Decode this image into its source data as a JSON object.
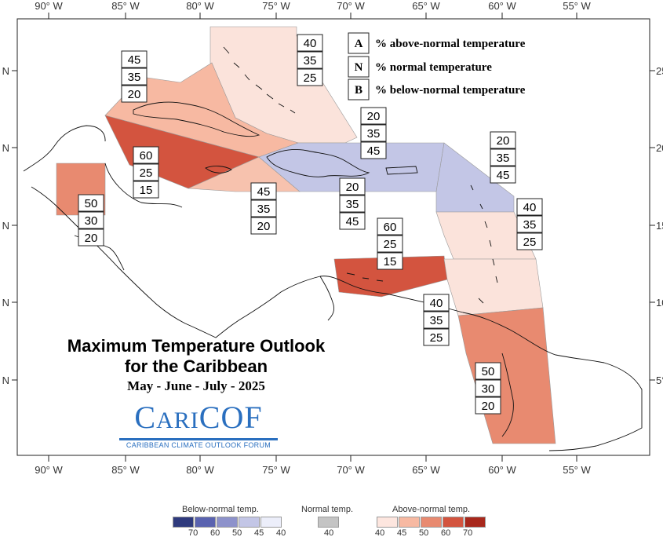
{
  "axes": {
    "x_labels": [
      "90° W",
      "85° W",
      "80° W",
      "75° W",
      "70° W",
      "65° W",
      "60° W",
      "55° W"
    ],
    "y_left_labels": [
      "N",
      "N",
      "N",
      "N",
      "N"
    ],
    "y_right_labels": [
      "25",
      "20",
      "15",
      "10",
      "5°"
    ]
  },
  "key": {
    "above": {
      "letter": "A",
      "text": "% above-normal temperature"
    },
    "normal": {
      "letter": "N",
      "text": "% normal temperature"
    },
    "below": {
      "letter": "B",
      "text": "% below-normal temperature"
    }
  },
  "regions": [
    {
      "name": "bahamas",
      "above": "40",
      "normal": "35",
      "below": "25",
      "color": "#fbe3db"
    },
    {
      "name": "cuba",
      "above": "45",
      "normal": "35",
      "below": "20",
      "color": "#f7b9a2"
    },
    {
      "name": "cayman-jamaica",
      "above": "60",
      "normal": "25",
      "below": "15",
      "color": "#d3543f"
    },
    {
      "name": "belize",
      "above": "50",
      "normal": "30",
      "below": "20",
      "color": "#e88a70"
    },
    {
      "name": "southern-haiti",
      "above": "45",
      "normal": "35",
      "below": "20",
      "color": "#f7c2ae"
    },
    {
      "name": "hispaniola-north",
      "above": "20",
      "normal": "35",
      "below": "45",
      "color": "#c3c6e6"
    },
    {
      "name": "greater-antilles-east",
      "above": "20",
      "normal": "35",
      "below": "45",
      "color": "#c3c6e6"
    },
    {
      "name": "leeward-islands",
      "above": "20",
      "normal": "35",
      "below": "45",
      "color": "#c3c6e6"
    },
    {
      "name": "windward-islands",
      "above": "40",
      "normal": "35",
      "below": "25",
      "color": "#fbe3db"
    },
    {
      "name": "abc-islands",
      "above": "60",
      "normal": "25",
      "below": "15",
      "color": "#d3543f"
    },
    {
      "name": "trinidad-tobago",
      "above": "40",
      "normal": "35",
      "below": "25",
      "color": "#fbe3db"
    },
    {
      "name": "guianas",
      "above": "50",
      "normal": "30",
      "below": "20",
      "color": "#e88a70"
    }
  ],
  "title": {
    "line1": "Maximum Temperature Outlook",
    "line2": "for the Caribbean",
    "season": "May - June - July - 2025"
  },
  "logo": {
    "word_big_c": "C",
    "word_ari": "ARI",
    "word_cof": "COF",
    "subtitle": "CARIBBEAN CLIMATE OUTLOOK FORUM"
  },
  "legend": {
    "below_title": "Below-normal temp.",
    "normal_title": "Normal temp.",
    "above_title": "Above-normal temp.",
    "below_colors": [
      "#2f3a7d",
      "#5a63b0",
      "#8d92cb",
      "#c3c6e6",
      "#eceefa"
    ],
    "below_ticks": [
      "70",
      "60",
      "50",
      "45",
      "40"
    ],
    "normal_color": "#c4c4c4",
    "normal_tick": "40",
    "above_colors": [
      "#fde6df",
      "#f7b9a2",
      "#e88a70",
      "#d3543f",
      "#a8281c"
    ],
    "above_ticks": [
      "40",
      "45",
      "50",
      "60",
      "70"
    ]
  }
}
